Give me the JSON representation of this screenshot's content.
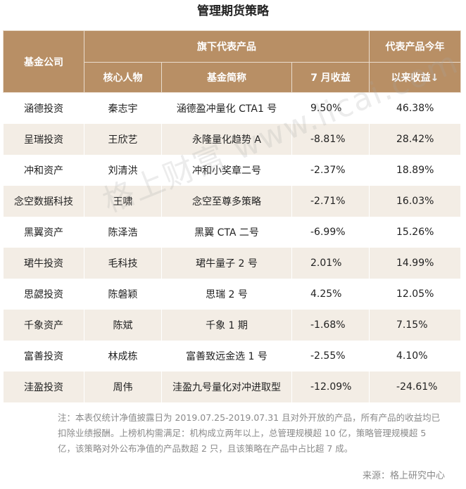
{
  "title": "管理期货策略",
  "header": {
    "company": "基金公司",
    "product_group": "旗下代表产品",
    "person": "核心人物",
    "fund_name": "基金简称",
    "july_return": "7 月收益",
    "ytd_return_line1": "代表产品今年",
    "ytd_return_line2": "以来收益↓"
  },
  "rows": [
    {
      "company": "涵德投资",
      "person": "秦志宇",
      "fund": "涵德盈冲量化 CTA1 号",
      "july": "9.50%",
      "ytd": "46.38%"
    },
    {
      "company": "呈瑞投资",
      "person": "王欣艺",
      "fund": "永隆量化趋势 A",
      "july": "-8.81%",
      "ytd": "28.42%"
    },
    {
      "company": "冲和资产",
      "person": "刘清洪",
      "fund": "冲和小奖章二号",
      "july": "-2.37%",
      "ytd": "18.89%"
    },
    {
      "company": "念空数据科技",
      "person": "王啸",
      "fund": "念空至尊多策略",
      "july": "-2.71%",
      "ytd": "16.03%"
    },
    {
      "company": "黑翼资产",
      "person": "陈泽浩",
      "fund": "黑翼 CTA 二号",
      "july": "-6.99%",
      "ytd": "15.26%"
    },
    {
      "company": "珺牛投资",
      "person": "毛科技",
      "fund": "珺牛量子 2 号",
      "july": "2.01%",
      "ytd": "14.99%"
    },
    {
      "company": "思勰投资",
      "person": "陈磐颖",
      "fund": "思瑞 2 号",
      "july": "4.25%",
      "ytd": "12.05%"
    },
    {
      "company": "千象资产",
      "person": "陈斌",
      "fund": "千象 1 期",
      "july": "-1.68%",
      "ytd": "7.15%"
    },
    {
      "company": "富善投资",
      "person": "林成栋",
      "fund": "富善致远金选 1 号",
      "july": "-2.55%",
      "ytd": "4.10%"
    },
    {
      "company": "洼盈投资",
      "person": "周伟",
      "fund": "洼盈九号量化对冲进取型",
      "july": "-12.09%",
      "ytd": "-24.61%"
    }
  ],
  "watermark": "格上财富 www.licai.com",
  "note": "注：本表仅统计净值披露日为 2019.07.25-2019.07.31 且对外开放的产品，所有产品的收益均已扣除业绩报酬。上榜机构需满足：机构成立两年以上，总管理规模超 10 亿，策略管理规模超 5 亿，该策略对外公布净值的产品数超 2 只，且该策略在产品中占比超 7 成。",
  "source": "来源：格上研究中心",
  "colors": {
    "header_bg": "#b88f65",
    "stripe_bg": "#f3ede5"
  }
}
